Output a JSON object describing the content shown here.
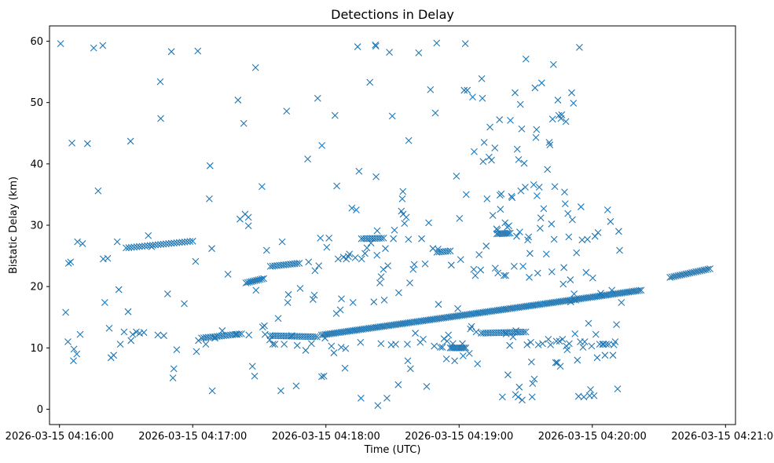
{
  "chart_data": {
    "type": "scatter",
    "title": "Detections in Delay",
    "xlabel": "Time (UTC)",
    "ylabel": "Bistatic Delay (km)",
    "marker": "x",
    "color": "#1f77b4",
    "xlim_seconds": [
      -4.5,
      304.5
    ],
    "ylim": [
      -2.5,
      62.5
    ],
    "x_reference": "2026-03-15 04:16:00",
    "xticks": [
      {
        "value": 0,
        "label": "2026-03-15 04:16:00"
      },
      {
        "value": 60,
        "label": "2026-03-15 04:17:00"
      },
      {
        "value": 120,
        "label": "2026-03-15 04:18:00"
      },
      {
        "value": 180,
        "label": "2026-03-15 04:19:00"
      },
      {
        "value": 240,
        "label": "2026-03-15 04:20:00"
      },
      {
        "value": 300,
        "label": "2026-03-15 04:21:00"
      }
    ],
    "yticks": [
      {
        "value": 0,
        "label": "0"
      },
      {
        "value": 10,
        "label": "10"
      },
      {
        "value": 20,
        "label": "20"
      },
      {
        "value": 30,
        "label": "30"
      },
      {
        "value": 40,
        "label": "40"
      },
      {
        "value": 50,
        "label": "50"
      },
      {
        "value": 60,
        "label": "60"
      }
    ],
    "tracks": [
      {
        "name": "track-a",
        "x_start": 30,
        "x_end": 60,
        "y_start": 26.3,
        "y_end": 27.4,
        "step": 1.2
      },
      {
        "name": "track-b",
        "x_start": 118,
        "x_end": 262,
        "y_start": 12.1,
        "y_end": 19.4,
        "step": 0.8
      },
      {
        "name": "track-c",
        "x_start": 275,
        "x_end": 293,
        "y_start": 21.5,
        "y_end": 22.9,
        "step": 0.9
      },
      {
        "name": "track-d",
        "x_start": 64,
        "x_end": 82,
        "y_start": 11.6,
        "y_end": 12.3,
        "step": 1.0
      },
      {
        "name": "track-e",
        "x_start": 95,
        "x_end": 116,
        "y_start": 12.0,
        "y_end": 11.8,
        "step": 1.0
      },
      {
        "name": "track-f",
        "x_start": 190,
        "x_end": 210,
        "y_start": 12.4,
        "y_end": 12.6,
        "step": 1.0
      },
      {
        "name": "track-g",
        "x_start": 84,
        "x_end": 92,
        "y_start": 20.6,
        "y_end": 21.3,
        "step": 0.8
      },
      {
        "name": "track-h",
        "x_start": 95,
        "x_end": 108,
        "y_start": 23.3,
        "y_end": 23.8,
        "step": 1.0
      },
      {
        "name": "track-i",
        "x_start": 136,
        "x_end": 146,
        "y_start": 27.8,
        "y_end": 27.9,
        "step": 1.0
      },
      {
        "name": "track-j",
        "x_start": 176,
        "x_end": 183,
        "y_start": 10.0,
        "y_end": 10.0,
        "step": 0.8
      },
      {
        "name": "track-k",
        "x_start": 197,
        "x_end": 203,
        "y_start": 28.6,
        "y_end": 28.7,
        "step": 0.8
      },
      {
        "name": "track-l",
        "x_start": 170,
        "x_end": 176,
        "y_start": 25.6,
        "y_end": 25.8,
        "step": 1.0
      }
    ],
    "points": [
      [
        0.5,
        59.6
      ],
      [
        2.8,
        15.8
      ],
      [
        3.8,
        11.0
      ],
      [
        4.1,
        23.8
      ],
      [
        5.0,
        24.0
      ],
      [
        5.6,
        43.4
      ],
      [
        6.3,
        7.9
      ],
      [
        6.5,
        9.8
      ],
      [
        7.8,
        9.0
      ],
      [
        8.1,
        27.3
      ],
      [
        9.3,
        12.2
      ],
      [
        10.4,
        27.0
      ],
      [
        12.6,
        43.3
      ],
      [
        15.4,
        58.9
      ],
      [
        17.4,
        35.6
      ],
      [
        19.5,
        59.3
      ],
      [
        19.7,
        24.5
      ],
      [
        20.4,
        17.4
      ],
      [
        21.7,
        24.6
      ],
      [
        22.4,
        13.2
      ],
      [
        23.2,
        8.4
      ],
      [
        24.4,
        8.8
      ],
      [
        26.0,
        27.3
      ],
      [
        26.7,
        19.5
      ],
      [
        27.4,
        10.6
      ],
      [
        29.1,
        12.6
      ],
      [
        30.9,
        15.9
      ],
      [
        32.0,
        43.7
      ],
      [
        32.2,
        11.2
      ],
      [
        33.0,
        12.2
      ],
      [
        34.6,
        12.6
      ],
      [
        36.1,
        12.4
      ],
      [
        38.0,
        12.5
      ],
      [
        40.0,
        28.3
      ],
      [
        41.5,
        26.5
      ],
      [
        44.3,
        12.1
      ],
      [
        45.4,
        53.4
      ],
      [
        45.6,
        47.4
      ],
      [
        47.0,
        12.0
      ],
      [
        48.7,
        18.8
      ],
      [
        50.4,
        58.3
      ],
      [
        51.1,
        5.1
      ],
      [
        51.5,
        6.6
      ],
      [
        52.8,
        9.7
      ],
      [
        56.2,
        17.2
      ],
      [
        61.7,
        9.4
      ],
      [
        62.3,
        58.4
      ],
      [
        61.3,
        24.1
      ],
      [
        62.6,
        11.2
      ],
      [
        65.9,
        10.6
      ],
      [
        67.5,
        34.3
      ],
      [
        67.8,
        39.7
      ],
      [
        68.6,
        26.2
      ],
      [
        68.8,
        3.0
      ],
      [
        70.0,
        11.6
      ],
      [
        73.3,
        12.8
      ],
      [
        75.9,
        22.0
      ],
      [
        79.6,
        12.2
      ],
      [
        80.4,
        50.4
      ],
      [
        81.3,
        31.0
      ],
      [
        83.0,
        46.6
      ],
      [
        83.6,
        31.8
      ],
      [
        85.1,
        31.3
      ],
      [
        85.1,
        29.9
      ],
      [
        85.3,
        12.1
      ],
      [
        86.9,
        7.0
      ],
      [
        87.9,
        5.4
      ],
      [
        88.3,
        55.7
      ],
      [
        88.5,
        19.4
      ],
      [
        91.2,
        36.3
      ],
      [
        91.5,
        13.4
      ],
      [
        92.3,
        13.6
      ],
      [
        92.6,
        12.2
      ],
      [
        93.3,
        25.9
      ],
      [
        94.7,
        11.3
      ],
      [
        96.1,
        10.6
      ],
      [
        97.0,
        10.6
      ],
      [
        98.5,
        14.8
      ],
      [
        99.7,
        3.0
      ],
      [
        100.3,
        27.3
      ],
      [
        101.2,
        10.6
      ],
      [
        102.3,
        48.6
      ],
      [
        102.8,
        17.4
      ],
      [
        103.1,
        18.7
      ],
      [
        104.6,
        12.0
      ],
      [
        106.6,
        3.8
      ],
      [
        107.1,
        10.4
      ],
      [
        108.4,
        19.7
      ],
      [
        110.9,
        9.6
      ],
      [
        111.8,
        40.8
      ],
      [
        112.2,
        24.0
      ],
      [
        113.5,
        10.7
      ],
      [
        114.2,
        17.9
      ],
      [
        114.8,
        18.6
      ],
      [
        115.1,
        22.6
      ],
      [
        116.3,
        50.7
      ],
      [
        116.8,
        23.4
      ],
      [
        117.5,
        27.9
      ],
      [
        118.2,
        43.0
      ],
      [
        118.1,
        5.3
      ],
      [
        119.1,
        5.4
      ],
      [
        119.6,
        11.6
      ],
      [
        120.4,
        26.4
      ],
      [
        121.4,
        27.9
      ],
      [
        122.5,
        10.3
      ],
      [
        123.6,
        9.2
      ],
      [
        124.1,
        47.9
      ],
      [
        124.7,
        15.6
      ],
      [
        124.9,
        36.4
      ],
      [
        125.5,
        24.5
      ],
      [
        126.5,
        16.2
      ],
      [
        126.9,
        10.1
      ],
      [
        127.0,
        18.0
      ],
      [
        127.9,
        24.8
      ],
      [
        128.6,
        6.7
      ],
      [
        128.9,
        9.9
      ],
      [
        129.2,
        24.5
      ],
      [
        130.1,
        24.9
      ],
      [
        130.6,
        25.3
      ],
      [
        131.7,
        32.8
      ],
      [
        132.2,
        17.4
      ],
      [
        133.2,
        24.7
      ],
      [
        133.7,
        32.5
      ],
      [
        134.3,
        59.1
      ],
      [
        134.9,
        38.8
      ],
      [
        135.6,
        10.9
      ],
      [
        135.8,
        1.8
      ],
      [
        136.1,
        24.5
      ],
      [
        137.6,
        25.4
      ],
      [
        138.5,
        26.3
      ],
      [
        139.8,
        53.3
      ],
      [
        140.3,
        27.1
      ],
      [
        141.6,
        17.5
      ],
      [
        142.3,
        59.4
      ],
      [
        142.5,
        59.2
      ],
      [
        142.6,
        37.9
      ],
      [
        143.0,
        25.1
      ],
      [
        143.1,
        29.1
      ],
      [
        143.4,
        0.6
      ],
      [
        144.3,
        20.6
      ],
      [
        144.8,
        10.7
      ],
      [
        144.9,
        21.6
      ],
      [
        145.9,
        22.8
      ],
      [
        146.3,
        17.8
      ],
      [
        146.8,
        26.2
      ],
      [
        147.5,
        1.8
      ],
      [
        147.9,
        23.4
      ],
      [
        148.6,
        58.2
      ],
      [
        149.4,
        10.5
      ],
      [
        149.9,
        47.8
      ],
      [
        150.4,
        27.8
      ],
      [
        150.9,
        29.2
      ],
      [
        151.4,
        10.6
      ],
      [
        152.6,
        4.0
      ],
      [
        152.8,
        19.0
      ],
      [
        154.0,
        32.3
      ],
      [
        154.4,
        34.3
      ],
      [
        154.7,
        35.5
      ],
      [
        154.8,
        31.8
      ],
      [
        155.4,
        30.3
      ],
      [
        156.2,
        31.3
      ],
      [
        156.7,
        10.6
      ],
      [
        156.9,
        7.9
      ],
      [
        157.2,
        27.7
      ],
      [
        157.3,
        43.8
      ],
      [
        157.8,
        20.6
      ],
      [
        158.1,
        6.6
      ],
      [
        159.3,
        22.8
      ],
      [
        159.8,
        23.6
      ],
      [
        160.3,
        12.4
      ],
      [
        161.8,
        58.1
      ],
      [
        162.5,
        10.9
      ],
      [
        163.1,
        27.8
      ],
      [
        163.8,
        11.4
      ],
      [
        164.7,
        23.7
      ],
      [
        165.4,
        3.7
      ],
      [
        166.3,
        30.4
      ],
      [
        167.1,
        52.1
      ],
      [
        168.2,
        26.2
      ],
      [
        168.8,
        10.3
      ],
      [
        169.3,
        48.3
      ],
      [
        169.9,
        59.7
      ],
      [
        170.5,
        26.1
      ],
      [
        170.7,
        17.1
      ],
      [
        171.6,
        10.1
      ],
      [
        172.5,
        10.1
      ],
      [
        173.2,
        11.5
      ],
      [
        174.3,
        8.2
      ],
      [
        174.6,
        11.1
      ],
      [
        175.2,
        12.1
      ],
      [
        176.5,
        23.5
      ],
      [
        177.2,
        10.7
      ],
      [
        178.0,
        7.9
      ],
      [
        178.8,
        38.0
      ],
      [
        179.4,
        16.4
      ],
      [
        180.2,
        31.1
      ],
      [
        180.7,
        24.4
      ],
      [
        181.5,
        10.7
      ],
      [
        181.8,
        8.7
      ],
      [
        182.3,
        52.0
      ],
      [
        182.8,
        59.6
      ],
      [
        183.2,
        35.0
      ],
      [
        183.7,
        52.0
      ],
      [
        184.6,
        9.1
      ],
      [
        185.1,
        13.1
      ],
      [
        185.6,
        13.5
      ],
      [
        186.1,
        50.9
      ],
      [
        186.6,
        22.8
      ],
      [
        186.8,
        42.0
      ],
      [
        187.3,
        21.8
      ],
      [
        187.7,
        12.6
      ],
      [
        188.3,
        7.4
      ],
      [
        189.0,
        25.2
      ],
      [
        189.7,
        22.7
      ],
      [
        190.2,
        53.9
      ],
      [
        190.5,
        50.7
      ],
      [
        190.8,
        40.4
      ],
      [
        191.3,
        43.5
      ],
      [
        192.2,
        26.6
      ],
      [
        192.6,
        34.3
      ],
      [
        193.5,
        41.1
      ],
      [
        193.9,
        46.0
      ],
      [
        194.6,
        40.6
      ],
      [
        195.2,
        31.6
      ],
      [
        196.1,
        42.6
      ],
      [
        196.3,
        23.0
      ],
      [
        196.9,
        29.4
      ],
      [
        197.3,
        29.2
      ],
      [
        197.5,
        22.2
      ],
      [
        198.2,
        47.2
      ],
      [
        198.4,
        34.9
      ],
      [
        198.6,
        32.6
      ],
      [
        199.0,
        35.1
      ],
      [
        199.5,
        2.0
      ],
      [
        200.2,
        21.8
      ],
      [
        200.7,
        30.4
      ],
      [
        201.0,
        21.8
      ],
      [
        201.2,
        12.3
      ],
      [
        201.7,
        29.7
      ],
      [
        202.0,
        5.6
      ],
      [
        202.4,
        29.9
      ],
      [
        202.8,
        10.4
      ],
      [
        203.1,
        47.1
      ],
      [
        203.6,
        34.7
      ],
      [
        203.9,
        34.5
      ],
      [
        204.3,
        11.8
      ],
      [
        204.8,
        23.3
      ],
      [
        205.2,
        51.6
      ],
      [
        205.4,
        2.4
      ],
      [
        205.6,
        12.8
      ],
      [
        205.9,
        28.2
      ],
      [
        206.2,
        42.4
      ],
      [
        206.6,
        2.0
      ],
      [
        206.8,
        40.7
      ],
      [
        207.1,
        3.6
      ],
      [
        207.3,
        28.9
      ],
      [
        207.6,
        49.7
      ],
      [
        207.8,
        35.6
      ],
      [
        208.2,
        45.7
      ],
      [
        208.4,
        1.5
      ],
      [
        208.8,
        23.3
      ],
      [
        209.3,
        40.1
      ],
      [
        209.8,
        36.2
      ],
      [
        210.1,
        57.1
      ],
      [
        210.6,
        10.5
      ],
      [
        210.9,
        27.6
      ],
      [
        211.3,
        28.1
      ],
      [
        211.6,
        21.5
      ],
      [
        211.9,
        25.4
      ],
      [
        212.3,
        10.9
      ],
      [
        212.6,
        7.7
      ],
      [
        212.9,
        2.0
      ],
      [
        213.1,
        4.2
      ],
      [
        213.6,
        36.6
      ],
      [
        213.9,
        4.9
      ],
      [
        214.2,
        52.4
      ],
      [
        214.6,
        44.3
      ],
      [
        214.9,
        45.6
      ],
      [
        215.1,
        34.8
      ],
      [
        215.4,
        22.2
      ],
      [
        215.7,
        10.5
      ],
      [
        216.1,
        36.2
      ],
      [
        216.5,
        29.5
      ],
      [
        216.8,
        31.2
      ],
      [
        217.2,
        53.2
      ],
      [
        217.6,
        10.7
      ],
      [
        218.1,
        32.7
      ],
      [
        219.3,
        25.3
      ],
      [
        219.8,
        39.1
      ],
      [
        220.2,
        11.4
      ],
      [
        220.6,
        43.5
      ],
      [
        220.9,
        43.1
      ],
      [
        221.2,
        10.5
      ],
      [
        221.6,
        30.2
      ],
      [
        221.8,
        22.4
      ],
      [
        222.1,
        47.3
      ],
      [
        222.5,
        56.2
      ],
      [
        222.8,
        27.7
      ],
      [
        223.1,
        36.3
      ],
      [
        223.5,
        7.6
      ],
      [
        223.8,
        11.1
      ],
      [
        224.2,
        7.6
      ],
      [
        224.5,
        50.4
      ],
      [
        224.9,
        47.9
      ],
      [
        225.2,
        11.1
      ],
      [
        225.6,
        7.0
      ],
      [
        225.9,
        47.4
      ],
      [
        226.2,
        48.0
      ],
      [
        226.6,
        11.4
      ],
      [
        226.9,
        20.4
      ],
      [
        227.2,
        23.1
      ],
      [
        227.5,
        35.4
      ],
      [
        227.8,
        33.5
      ],
      [
        228.1,
        46.9
      ],
      [
        228.3,
        10.3
      ],
      [
        228.7,
        9.7
      ],
      [
        229.0,
        31.9
      ],
      [
        229.4,
        28.1
      ],
      [
        229.6,
        10.7
      ],
      [
        230.1,
        21.1
      ],
      [
        230.3,
        17.5
      ],
      [
        230.7,
        51.6
      ],
      [
        231.0,
        30.9
      ],
      [
        231.5,
        49.9
      ],
      [
        231.8,
        18.8
      ],
      [
        232.2,
        12.3
      ],
      [
        232.5,
        17.8
      ],
      [
        232.9,
        25.5
      ],
      [
        233.3,
        8.0
      ],
      [
        233.8,
        2.1
      ],
      [
        234.2,
        59.0
      ],
      [
        234.6,
        11.0
      ],
      [
        234.9,
        33.0
      ],
      [
        235.4,
        27.6
      ],
      [
        235.8,
        10.1
      ],
      [
        236.2,
        2.0
      ],
      [
        236.6,
        11.0
      ],
      [
        237.2,
        22.3
      ],
      [
        237.8,
        27.7
      ],
      [
        238.3,
        14.0
      ],
      [
        238.8,
        2.2
      ],
      [
        239.2,
        3.2
      ],
      [
        239.7,
        10.3
      ],
      [
        240.2,
        21.4
      ],
      [
        240.8,
        2.2
      ],
      [
        241.2,
        28.2
      ],
      [
        241.6,
        12.2
      ],
      [
        242.2,
        8.4
      ],
      [
        242.6,
        28.8
      ],
      [
        243.3,
        10.6
      ],
      [
        243.8,
        18.9
      ],
      [
        244.6,
        10.6
      ],
      [
        245.1,
        10.6
      ],
      [
        245.7,
        8.8
      ],
      [
        246.3,
        10.6
      ],
      [
        246.9,
        32.5
      ],
      [
        247.4,
        10.6
      ],
      [
        248.2,
        30.6
      ],
      [
        248.8,
        19.4
      ],
      [
        249.3,
        8.8
      ],
      [
        249.7,
        10.5
      ],
      [
        250.3,
        11.0
      ],
      [
        250.9,
        13.8
      ],
      [
        251.4,
        3.3
      ],
      [
        251.9,
        29.0
      ],
      [
        252.3,
        25.9
      ],
      [
        253.1,
        17.4
      ]
    ]
  }
}
